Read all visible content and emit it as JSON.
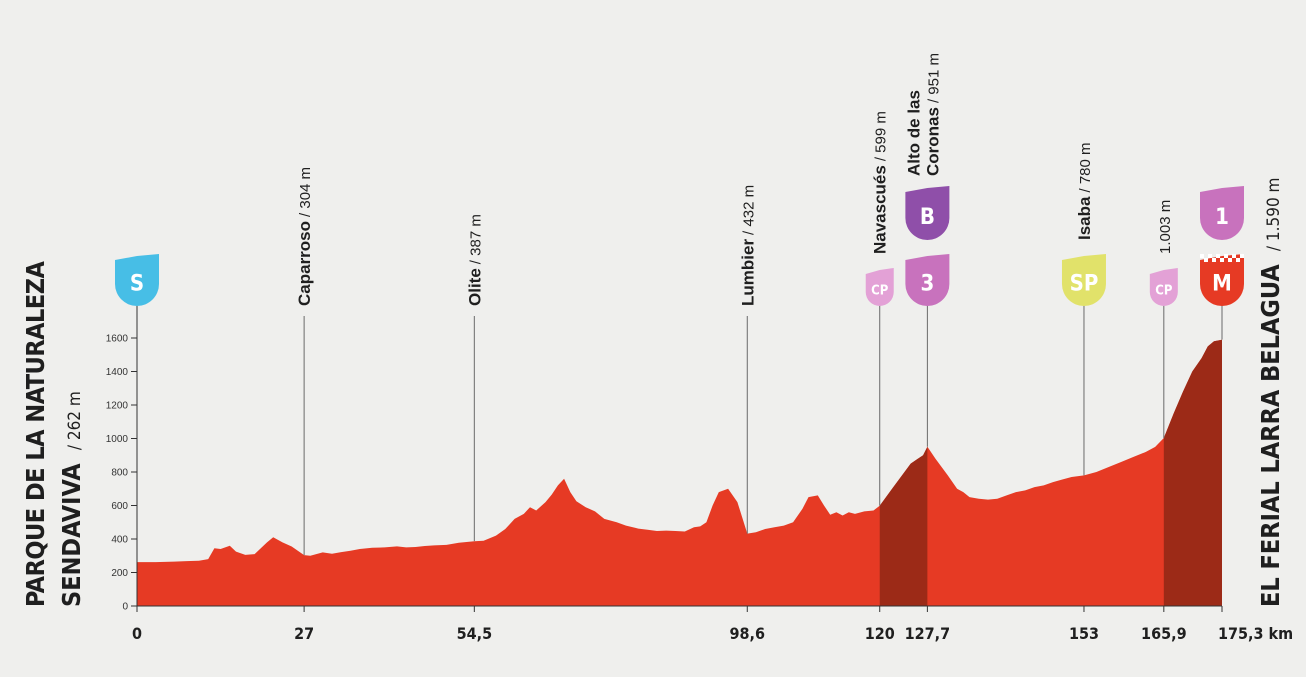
{
  "chart_data": {
    "type": "area",
    "title": "",
    "xlabel": "",
    "ylabel": "",
    "ylim": [
      0,
      1700
    ],
    "xlim": [
      0,
      175.3
    ],
    "y_ticks": [
      0,
      200,
      400,
      600,
      800,
      1000,
      1200,
      1400,
      1600
    ],
    "y_tick_labels": [
      "0",
      "200",
      "400",
      "600",
      "800",
      "1000",
      "1200",
      "1400",
      "1600"
    ],
    "x_ticks": [
      0,
      27,
      54.5,
      98.6,
      120,
      127.7,
      153,
      165.9,
      175.3
    ],
    "x_tick_labels": [
      "0",
      "27",
      "54,5",
      "98,6",
      "120",
      "127,7",
      "153",
      "165,9",
      "175,3 km"
    ],
    "grid": false,
    "start": {
      "name_line1": "PARQUE DE LA NATURALEZA",
      "name_line2": "SENDAVIVA",
      "altitude": "/ 262 m"
    },
    "finish": {
      "name": "EL FERIAL LARRA BELAGUA",
      "altitude": "/ 1.590 m"
    },
    "profile": {
      "x": [
        0,
        3,
        6,
        8,
        10,
        11.5,
        12.5,
        13.5,
        15,
        16,
        17.5,
        19,
        21,
        22,
        23.5,
        25,
        27,
        28,
        30,
        31.5,
        33,
        34.5,
        36,
        38,
        40,
        42,
        43.5,
        45,
        46.5,
        48,
        50,
        52,
        54.5,
        56,
        58,
        59.5,
        61,
        62.5,
        63.5,
        64.5,
        66,
        67,
        68,
        69,
        70,
        71,
        72.5,
        74,
        75.5,
        77.5,
        79,
        81,
        82.5,
        84,
        85.5,
        87,
        88.5,
        90,
        91,
        92,
        93,
        94,
        95.5,
        97,
        98.6,
        100,
        101.5,
        103,
        104.5,
        106,
        107.5,
        108.5,
        110,
        111,
        112,
        113,
        114,
        115,
        116,
        117.5,
        119,
        120,
        122,
        124,
        125,
        126,
        127,
        127.7,
        129,
        131,
        132.5,
        133.5,
        134.5,
        136,
        137.5,
        139,
        140.5,
        142,
        143.5,
        145,
        146.5,
        148,
        149.5,
        151,
        153,
        155,
        157,
        159,
        161,
        163,
        164.5,
        165.9,
        167.5,
        169,
        170.5,
        172,
        173,
        174,
        175.3
      ],
      "y": [
        262,
        262,
        265,
        268,
        270,
        280,
        345,
        340,
        360,
        325,
        305,
        310,
        380,
        410,
        380,
        355,
        304,
        300,
        320,
        312,
        322,
        330,
        340,
        348,
        350,
        356,
        350,
        352,
        358,
        362,
        365,
        378,
        387,
        390,
        420,
        460,
        520,
        550,
        590,
        570,
        620,
        665,
        720,
        760,
        680,
        625,
        590,
        565,
        520,
        500,
        480,
        462,
        455,
        448,
        450,
        448,
        445,
        470,
        475,
        500,
        600,
        680,
        700,
        620,
        432,
        440,
        460,
        470,
        480,
        500,
        580,
        650,
        660,
        600,
        545,
        560,
        540,
        560,
        550,
        565,
        570,
        599,
        700,
        800,
        850,
        875,
        900,
        951,
        880,
        780,
        700,
        680,
        650,
        640,
        635,
        640,
        660,
        680,
        690,
        710,
        720,
        740,
        755,
        770,
        780,
        800,
        830,
        860,
        890,
        920,
        950,
        1003,
        1150,
        1280,
        1400,
        1480,
        1550,
        1580,
        1590
      ]
    },
    "climb_segments": [
      [
        120,
        127.7
      ],
      [
        165.9,
        175.3
      ]
    ],
    "colors": {
      "profile": "#e63a24",
      "climb": "#9c2a17",
      "axis": "#222222",
      "guide": "#6a6a6a"
    },
    "waypoints": [
      {
        "km": 0,
        "elev": 262,
        "badge": "S",
        "badge_color": "#47bee6",
        "badge_size": "large",
        "name": "",
        "altitude": ""
      },
      {
        "km": 27,
        "elev": 304,
        "name": "Caparroso",
        "altitude": "/ 304 m"
      },
      {
        "km": 54.5,
        "elev": 387,
        "name": "Olite",
        "altitude": "/ 387 m"
      },
      {
        "km": 98.6,
        "elev": 432,
        "name": "Lumbier",
        "altitude": "/ 432 m"
      },
      {
        "km": 120,
        "elev": 599,
        "badge": "CP",
        "badge_color": "#e3a1d6",
        "badge_size": "small",
        "name": "Navascués",
        "altitude": "/ 599 m"
      },
      {
        "km": 127.7,
        "elev": 951,
        "badge": "3",
        "badge_color": "#c872bd",
        "badge_size": "large",
        "badge2": "B",
        "badge2_color": "#8f4fa9",
        "name": "Alto de las",
        "name_line2": "Coronas",
        "altitude": "/ 951 m"
      },
      {
        "km": 153,
        "elev": 780,
        "badge": "SP",
        "badge_color": "#e1e26a",
        "badge_size": "large",
        "name": "Isaba",
        "altitude": "/ 780 m"
      },
      {
        "km": 165.9,
        "elev": 1003,
        "badge": "CP",
        "badge_color": "#e3a1d6",
        "badge_size": "small",
        "name": "",
        "altitude": "1.003 m"
      },
      {
        "km": 175.3,
        "elev": 1590,
        "badge": "M",
        "badge_color": "#e63a24",
        "badge_size": "large",
        "checkered": true,
        "badge2": "1",
        "badge2_color": "#c872bd",
        "name": "",
        "altitude": ""
      }
    ]
  }
}
